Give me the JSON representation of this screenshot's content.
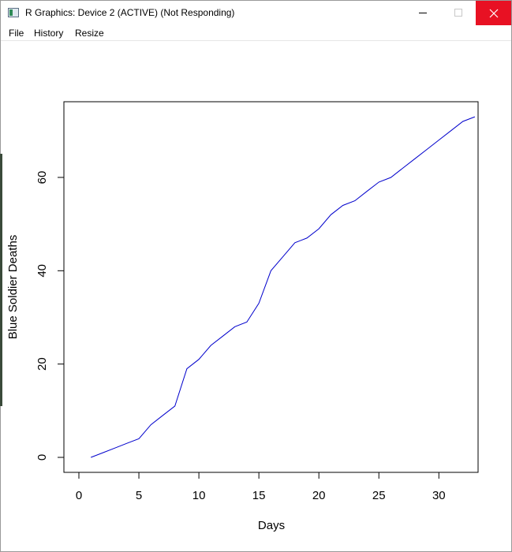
{
  "window": {
    "title": "R Graphics: Device 2 (ACTIVE) (Not Responding)",
    "menu": [
      "File",
      "History",
      "Resize"
    ]
  },
  "chart_data": {
    "type": "line",
    "title": "",
    "xlabel": "Days",
    "ylabel": "Blue Soldier Deaths",
    "xlim": [
      0,
      33
    ],
    "ylim": [
      0,
      73
    ],
    "xticks": [
      0,
      5,
      10,
      15,
      20,
      25,
      30
    ],
    "yticks": [
      0,
      20,
      40,
      60
    ],
    "grid": false,
    "line_color": "#0000cc",
    "series": [
      {
        "x": [
          1,
          2,
          3,
          4,
          5,
          6,
          7,
          8,
          9,
          10,
          11,
          12,
          13,
          14,
          15,
          16,
          17,
          18,
          19,
          20,
          21,
          22,
          23,
          24,
          25,
          26,
          27,
          28,
          29,
          30,
          31,
          32,
          33
        ],
        "values": [
          0,
          1,
          2,
          3,
          4,
          7,
          9,
          11,
          19,
          21,
          24,
          26,
          28,
          29,
          33,
          40,
          43,
          46,
          47,
          49,
          52,
          54,
          55,
          57,
          59,
          60,
          62,
          64,
          66,
          68,
          70,
          72,
          73
        ]
      }
    ]
  }
}
